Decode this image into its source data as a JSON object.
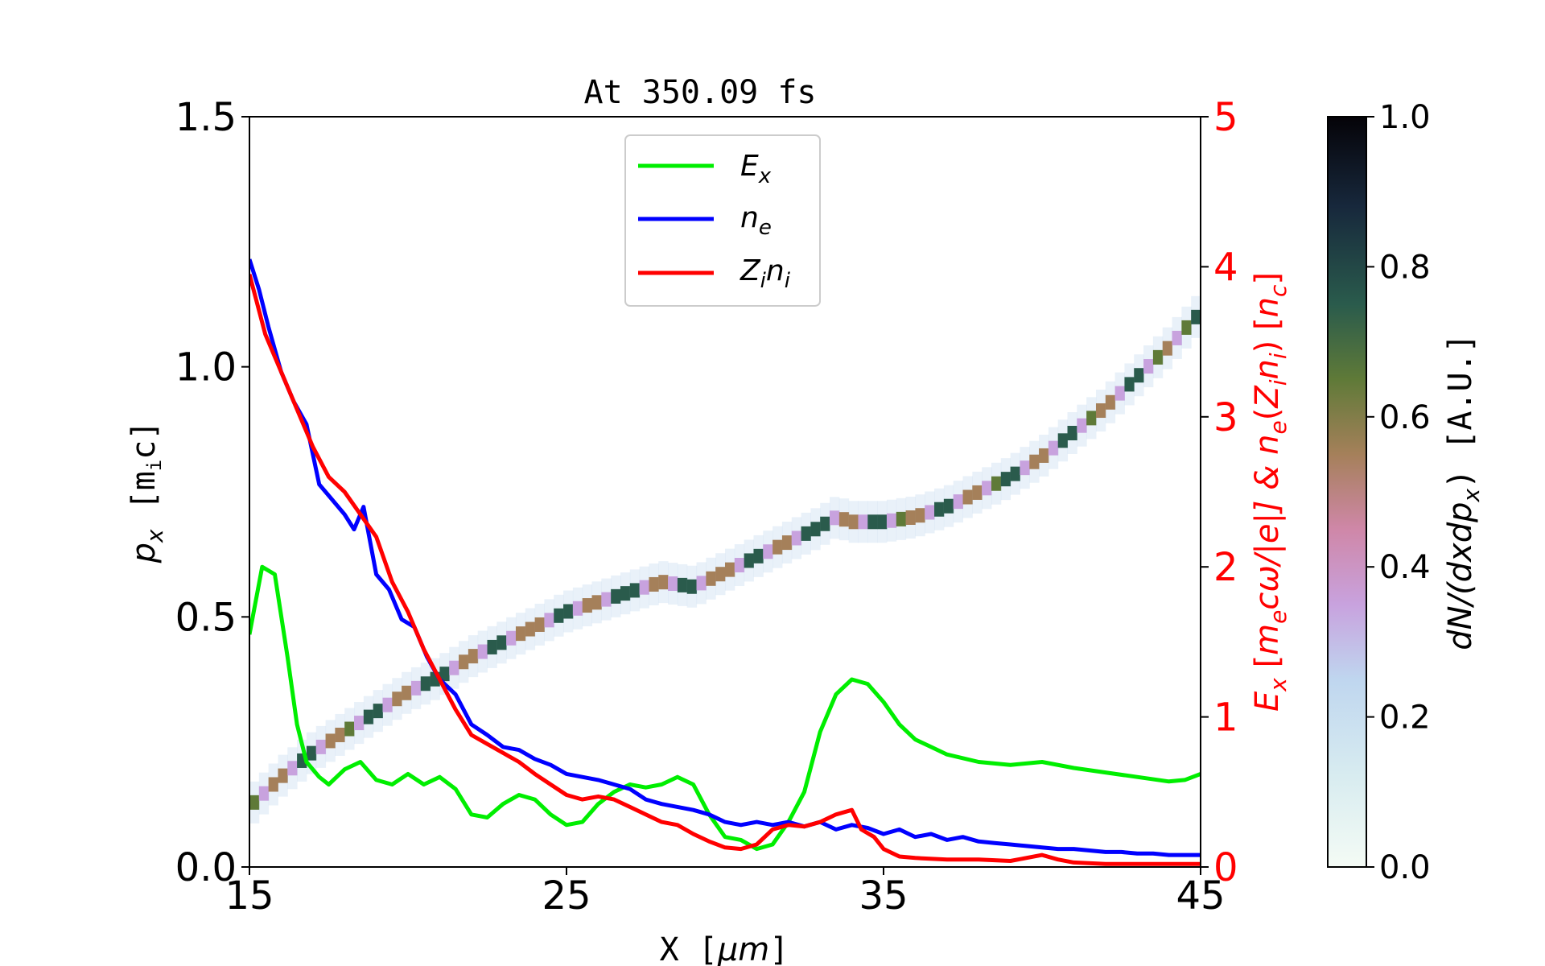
{
  "chart_data": {
    "type": "heatmap",
    "title": "At 350.09 fs",
    "xlabel_parts": [
      "X [",
      "μm",
      "]"
    ],
    "ylabel_parts": [
      "p",
      "x",
      " [",
      "m",
      "i",
      "c]"
    ],
    "y2label_parts": [
      "E",
      "x",
      " [",
      "m",
      "e",
      "cω/|e|]  &  ",
      "n",
      "e",
      "(",
      "Z",
      "i",
      "n",
      "i",
      ")  [",
      "n",
      "c",
      "]"
    ],
    "colorbar_label_parts": [
      "dN/(dxdp",
      "x",
      ")  [A.U.]"
    ],
    "xlim": [
      15,
      45
    ],
    "ylim": [
      0,
      1.5
    ],
    "y2lim": [
      0,
      5
    ],
    "clim": [
      0,
      1
    ],
    "x_ticks": [
      "15",
      "25",
      "35",
      "45"
    ],
    "y_ticks": [
      "0.0",
      "0.5",
      "1.0",
      "1.5"
    ],
    "y2_ticks": [
      "0",
      "1",
      "2",
      "3",
      "4",
      "5"
    ],
    "colorbar_ticks": [
      "0.0",
      "0.2",
      "0.4",
      "0.6",
      "0.8",
      "1.0"
    ],
    "legend_position": "upper center",
    "colors": {
      "Ex": "#00ee00",
      "ne": "#0000ff",
      "Zini": "#ff0000",
      "right_axis": "#ff0000",
      "colormap": [
        "#f4fbf5",
        "#bfd6ef",
        "#c8a2de",
        "#cf87a8",
        "#a5805a",
        "#5f7a38",
        "#2a5b4c",
        "#17283c",
        "#050308"
      ]
    },
    "phase_space_ridge": {
      "x": [
        15,
        16,
        17,
        18,
        19,
        20,
        21,
        22,
        23,
        24,
        25,
        26,
        27,
        28,
        29,
        30,
        31,
        32,
        33,
        33.5,
        34,
        35,
        36,
        37,
        38,
        39,
        40,
        41,
        42,
        43,
        44,
        45
      ],
      "px": [
        0.12,
        0.18,
        0.23,
        0.27,
        0.31,
        0.35,
        0.38,
        0.42,
        0.45,
        0.48,
        0.51,
        0.53,
        0.55,
        0.57,
        0.56,
        0.59,
        0.62,
        0.65,
        0.68,
        0.7,
        0.69,
        0.69,
        0.7,
        0.72,
        0.75,
        0.78,
        0.82,
        0.87,
        0.92,
        0.98,
        1.04,
        1.11
      ],
      "intensity": 0.9
    },
    "series": [
      {
        "name_parts": [
          "E",
          "x"
        ],
        "axis": "right",
        "x": [
          15,
          15.4,
          15.8,
          16.2,
          16.5,
          16.8,
          17.2,
          17.5,
          18,
          18.5,
          19,
          19.5,
          20,
          20.5,
          21,
          21.5,
          22,
          22.5,
          23,
          23.5,
          24,
          24.5,
          25,
          25.5,
          26,
          26.5,
          27,
          27.5,
          28,
          28.5,
          29,
          29.5,
          30,
          30.5,
          31,
          31.5,
          32,
          32.5,
          33,
          33.5,
          34,
          34.5,
          35,
          35.5,
          36,
          36.5,
          37,
          38,
          39,
          40,
          41,
          42,
          43,
          44,
          44.5,
          45
        ],
        "y": [
          1.55,
          2.0,
          1.95,
          1.4,
          0.95,
          0.7,
          0.6,
          0.55,
          0.65,
          0.7,
          0.58,
          0.55,
          0.62,
          0.55,
          0.6,
          0.52,
          0.35,
          0.33,
          0.42,
          0.48,
          0.45,
          0.35,
          0.28,
          0.3,
          0.42,
          0.5,
          0.55,
          0.53,
          0.55,
          0.6,
          0.55,
          0.35,
          0.2,
          0.18,
          0.12,
          0.15,
          0.3,
          0.5,
          0.9,
          1.15,
          1.25,
          1.22,
          1.1,
          0.95,
          0.85,
          0.8,
          0.75,
          0.7,
          0.68,
          0.7,
          0.66,
          0.63,
          0.6,
          0.57,
          0.58,
          0.62
        ]
      },
      {
        "name_parts": [
          "n",
          "e"
        ],
        "axis": "right",
        "x": [
          15,
          15.3,
          15.6,
          16,
          16.4,
          16.8,
          17.2,
          17.6,
          18,
          18.3,
          18.6,
          19,
          19.4,
          19.8,
          20.2,
          20.6,
          21,
          21.5,
          22,
          22.5,
          23,
          23.5,
          24,
          24.5,
          25,
          25.5,
          26,
          26.5,
          27,
          27.5,
          28,
          28.5,
          29,
          29.5,
          30,
          30.5,
          31,
          31.5,
          32,
          32.5,
          33,
          33.5,
          34,
          34.5,
          35,
          35.5,
          36,
          36.5,
          37,
          37.5,
          38,
          38.5,
          39,
          39.5,
          40,
          40.5,
          41,
          41.5,
          42,
          42.5,
          43,
          43.5,
          44,
          44.5,
          45
        ],
        "y": [
          4.05,
          3.85,
          3.6,
          3.3,
          3.1,
          2.95,
          2.55,
          2.45,
          2.35,
          2.25,
          2.4,
          1.95,
          1.85,
          1.65,
          1.6,
          1.4,
          1.25,
          1.15,
          0.95,
          0.88,
          0.8,
          0.78,
          0.72,
          0.68,
          0.62,
          0.6,
          0.58,
          0.55,
          0.52,
          0.45,
          0.42,
          0.4,
          0.38,
          0.35,
          0.3,
          0.28,
          0.3,
          0.28,
          0.3,
          0.27,
          0.3,
          0.25,
          0.28,
          0.26,
          0.22,
          0.25,
          0.2,
          0.22,
          0.18,
          0.2,
          0.17,
          0.16,
          0.15,
          0.14,
          0.13,
          0.12,
          0.12,
          0.11,
          0.1,
          0.1,
          0.09,
          0.09,
          0.08,
          0.08,
          0.08
        ]
      },
      {
        "name_parts": [
          "Z",
          "i",
          "n",
          "i"
        ],
        "axis": "right",
        "x": [
          15,
          15.5,
          16,
          16.5,
          17,
          17.5,
          18,
          18.5,
          19,
          19.5,
          20,
          20.5,
          21,
          21.5,
          22,
          22.5,
          23,
          23.5,
          24,
          24.5,
          25,
          25.5,
          26,
          26.5,
          27,
          27.5,
          28,
          28.5,
          29,
          29.5,
          30,
          30.5,
          31,
          31.5,
          32,
          32.5,
          33,
          33.5,
          34,
          34.3,
          34.7,
          35,
          35.5,
          36,
          37,
          38,
          39,
          39.5,
          40,
          40.5,
          41,
          42,
          43,
          44,
          45
        ],
        "y": [
          3.95,
          3.55,
          3.3,
          3.05,
          2.8,
          2.6,
          2.5,
          2.35,
          2.2,
          1.9,
          1.7,
          1.45,
          1.25,
          1.05,
          0.88,
          0.82,
          0.76,
          0.7,
          0.62,
          0.55,
          0.48,
          0.45,
          0.47,
          0.45,
          0.4,
          0.35,
          0.3,
          0.28,
          0.22,
          0.17,
          0.13,
          0.12,
          0.15,
          0.25,
          0.28,
          0.27,
          0.3,
          0.35,
          0.38,
          0.25,
          0.2,
          0.12,
          0.07,
          0.06,
          0.05,
          0.05,
          0.04,
          0.06,
          0.08,
          0.05,
          0.03,
          0.02,
          0.02,
          0.02,
          0.02
        ]
      }
    ]
  }
}
